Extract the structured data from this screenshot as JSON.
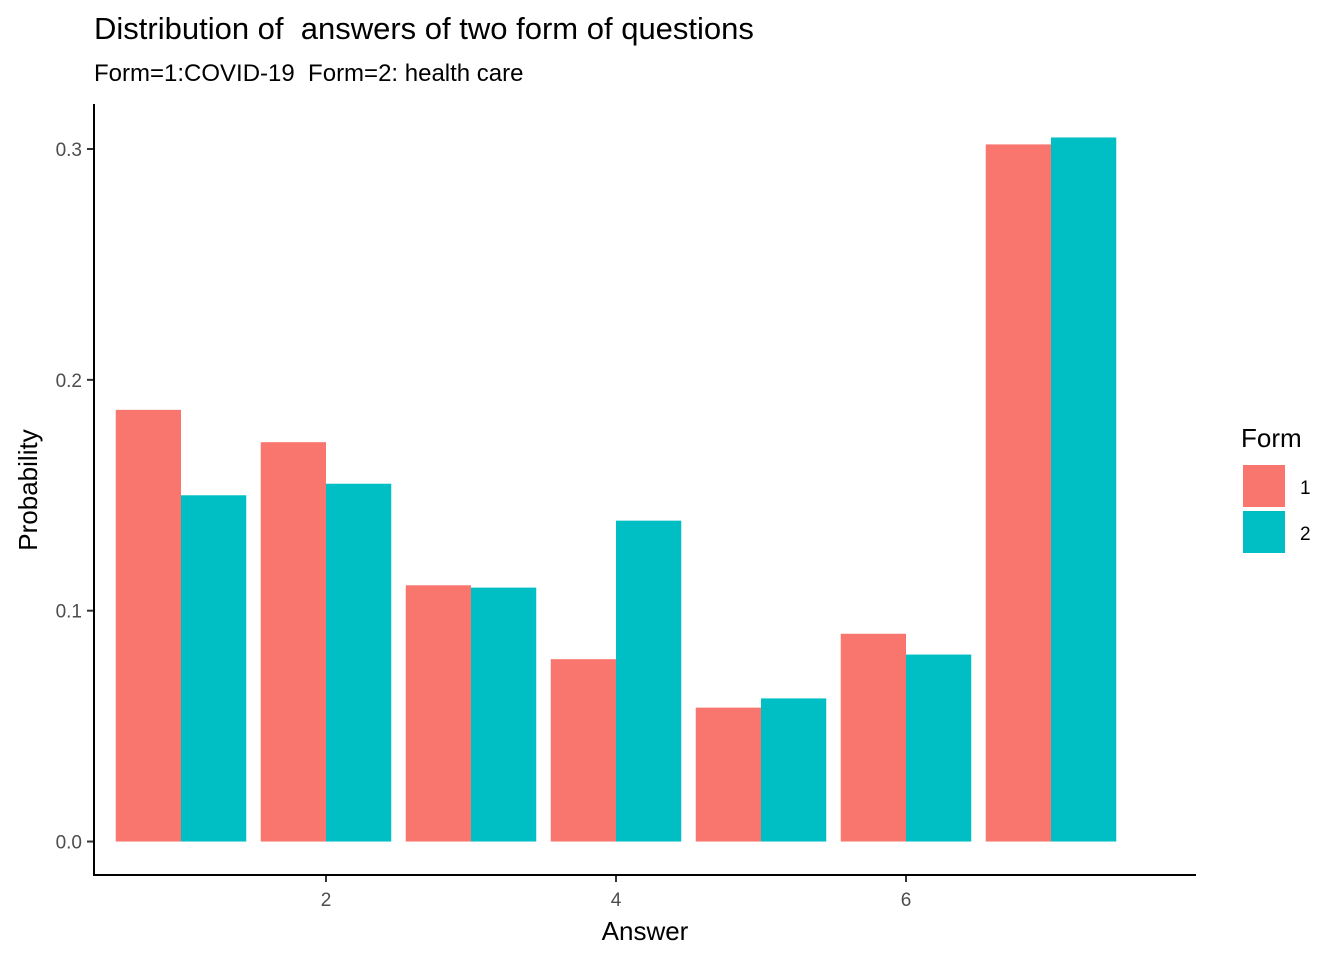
{
  "chart_data": {
    "type": "bar",
    "title": "Distribution of  answers of two form of questions",
    "subtitle": "Form=1:COVID-19  Form=2: health care",
    "xlabel": "Answer",
    "ylabel": "Probability",
    "x": [
      1,
      2,
      3,
      4,
      5,
      6,
      7
    ],
    "xticks": [
      "2",
      "4",
      "6"
    ],
    "xtick_values": [
      2,
      4,
      6
    ],
    "xlim": [
      0.4,
      8.0
    ],
    "yticks": [
      "0.0",
      "0.1",
      "0.2",
      "0.3"
    ],
    "ytick_values": [
      0,
      0.1,
      0.2,
      0.3
    ],
    "ylim": [
      -0.0145,
      0.3195
    ],
    "grid": false,
    "legend": {
      "title": "Form",
      "position": "right"
    },
    "series": [
      {
        "name": "1",
        "color": "#F8766D",
        "values": [
          0.187,
          0.173,
          0.111,
          0.079,
          0.058,
          0.09,
          0.302
        ]
      },
      {
        "name": "2",
        "color": "#00BFC4",
        "values": [
          0.15,
          0.155,
          0.11,
          0.139,
          0.062,
          0.081,
          0.305
        ]
      }
    ]
  }
}
